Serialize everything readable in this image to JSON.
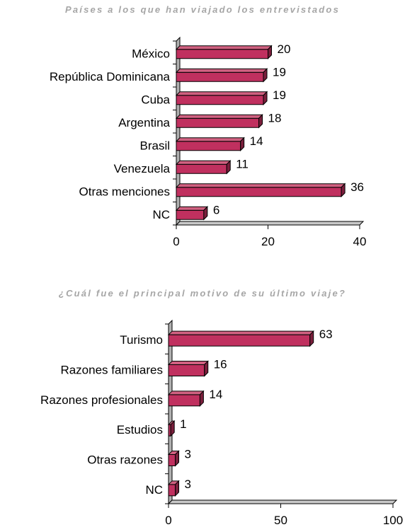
{
  "colors": {
    "bar_front": "#c0305f",
    "bar_top": "#d06080",
    "bar_side": "#7a1f3c",
    "floor": "#c8c8c8",
    "wall": "#b0b0b0",
    "title": "#a6a6a6"
  },
  "chart_data": [
    {
      "type": "bar",
      "orientation": "horizontal",
      "style": "3d",
      "title": "Países a los que han viajado los entrevistados",
      "categories": [
        "México",
        "República Dominicana",
        "Cuba",
        "Argentina",
        "Brasil",
        "Venezuela",
        "Otras menciones",
        "NC"
      ],
      "values": [
        20,
        19,
        19,
        18,
        14,
        11,
        36,
        6
      ],
      "value_labels": [
        "20",
        "19",
        "19",
        "18",
        "14",
        "11",
        "36",
        "6"
      ],
      "xlim": [
        0,
        40
      ],
      "xticks": [
        0,
        20,
        40
      ],
      "xtick_labels": [
        "0",
        "20",
        "40"
      ],
      "grid": false,
      "legend": "none"
    },
    {
      "type": "bar",
      "orientation": "horizontal",
      "style": "3d",
      "title": "¿Cuál fue el principal motivo de su último viaje?",
      "categories": [
        "Turismo",
        "Razones familiares",
        "Razones profesionales",
        "Estudios",
        "Otras razones",
        "NC"
      ],
      "values": [
        63,
        16,
        14,
        1,
        3,
        3
      ],
      "value_labels": [
        "63",
        "16",
        "14",
        "1",
        "3",
        "3"
      ],
      "xlim": [
        0,
        100
      ],
      "xticks": [
        0,
        50,
        100
      ],
      "xtick_labels": [
        "0",
        "50",
        "100"
      ],
      "grid": false,
      "legend": "none"
    }
  ]
}
